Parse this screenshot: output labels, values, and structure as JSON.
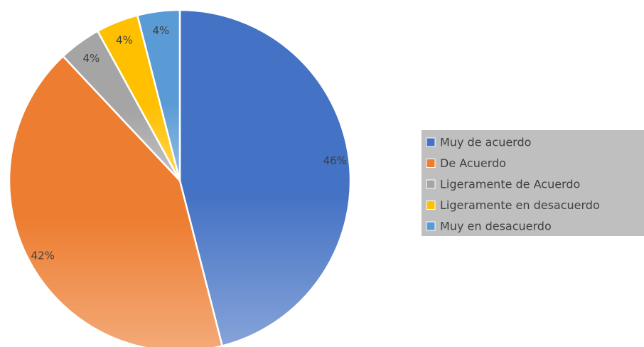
{
  "chart_data": {
    "type": "pie",
    "categories": [
      "Muy de acuerdo",
      "De Acuerdo",
      "Ligeramente de Acuerdo",
      "Ligeramente en desacuerdo",
      "Muy en desacuerdo"
    ],
    "values": [
      46,
      42,
      4,
      4,
      4
    ],
    "value_labels": [
      "46%",
      "42%",
      "4%",
      "4%",
      "4%"
    ],
    "colors": [
      "#4472c4",
      "#ed7d31",
      "#a5a5a5",
      "#ffc000",
      "#5b9bd5"
    ],
    "legend": "right"
  }
}
